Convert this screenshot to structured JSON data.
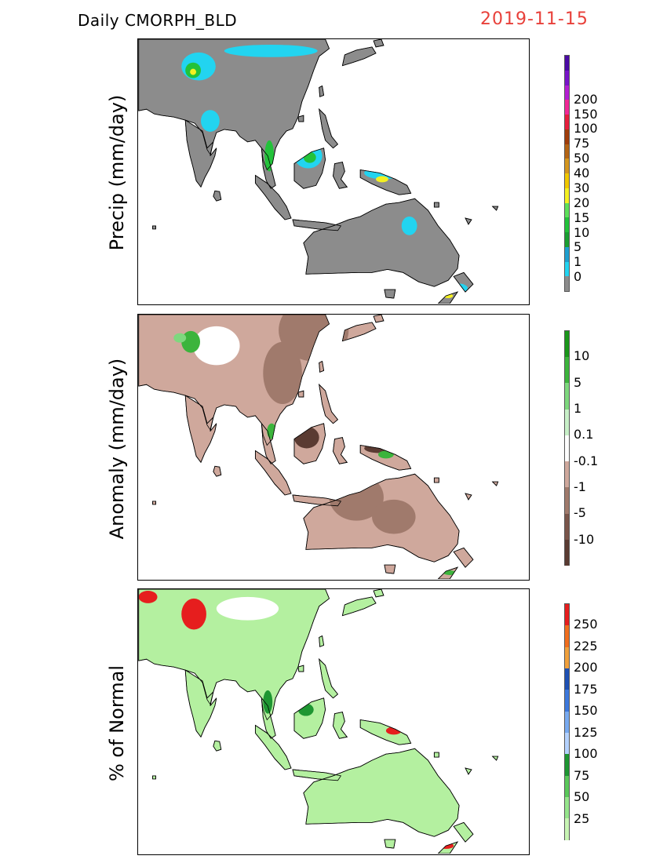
{
  "header": {
    "title": "Daily CMORPH_BLD",
    "date": "2019-11-15"
  },
  "panels": [
    {
      "id": "precip",
      "ylabel": "Precip (mm/day)",
      "land_color": "#8c8c8c",
      "colorbar": {
        "colors": [
          "#8c8c8c",
          "#22d4f0",
          "#1e9fcf",
          "#1a9e32",
          "#23c23a",
          "#5ee05a",
          "#f4f021",
          "#f0c800",
          "#d4961e",
          "#b46414",
          "#a03c0a",
          "#e61e3c",
          "#f02896",
          "#b41ed2",
          "#7814c8",
          "#4b0aa5"
        ],
        "labels": [
          "0",
          "1",
          "5",
          "10",
          "15",
          "20",
          "30",
          "40",
          "50",
          "75",
          "100",
          "150",
          "200"
        ]
      }
    },
    {
      "id": "anomaly",
      "ylabel": "Anomaly (mm/day)",
      "land_color": "#cfa89c",
      "colorbar": {
        "colors": [
          "#5a3b32",
          "#7a554a",
          "#a07a6c",
          "#cfa89c",
          "#ffffff",
          "#c8f0c8",
          "#7ed87e",
          "#3cb43c",
          "#1a961a"
        ],
        "labels": [
          "-10",
          "-5",
          "-1",
          "-0.1",
          "0.1",
          "1",
          "5",
          "10"
        ]
      }
    },
    {
      "id": "percent",
      "ylabel": "% of Normal",
      "land_color": "#b4f0a0",
      "colorbar": {
        "colors": [
          "#c8f5b4",
          "#96e68c",
          "#5ac85a",
          "#1e9632",
          "#b4d2ff",
          "#78aaf0",
          "#3c78dc",
          "#1e50b4",
          "#f0a03c",
          "#f06e1e",
          "#e61e1e"
        ],
        "labels": [
          "25",
          "50",
          "75",
          "100",
          "125",
          "150",
          "175",
          "200",
          "225",
          "250"
        ]
      }
    }
  ]
}
